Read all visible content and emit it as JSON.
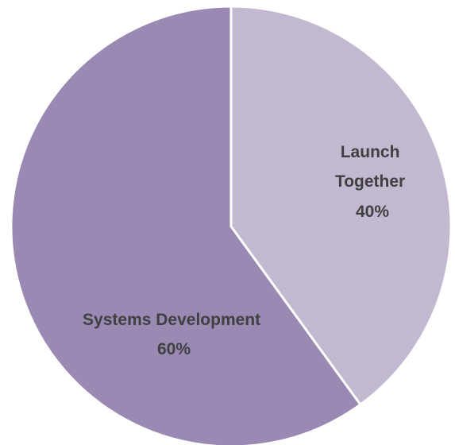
{
  "chart_data": {
    "type": "pie",
    "slices": [
      {
        "name": "Launch Together",
        "label_lines": [
          "Launch",
          "Together"
        ],
        "percent_label": "40%",
        "value": 40,
        "color": "#c2b9d1"
      },
      {
        "name": "Systems Development",
        "label_lines": [
          "Systems Development"
        ],
        "percent_label": "60%",
        "value": 60,
        "color": "#9a89b3"
      }
    ],
    "start_angle_deg": 0,
    "direction": "clockwise",
    "separator_color": "#ffffff",
    "label_color": "#404040",
    "legend": "none"
  }
}
